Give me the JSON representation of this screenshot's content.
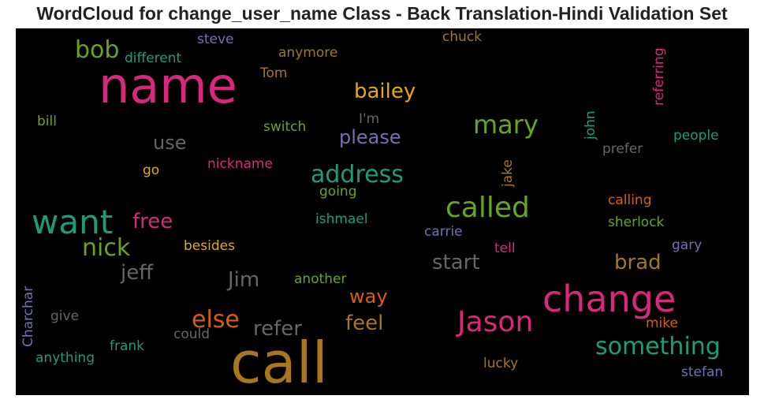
{
  "title": "WordCloud for change_user_name Class - Back Translation-Hindi Validation Set",
  "words": [
    {
      "text": "name",
      "color": "#d8287e"
    },
    {
      "text": "call",
      "color": "#a8761d"
    },
    {
      "text": "change",
      "color": "#d8287e"
    },
    {
      "text": "want",
      "color": "#1b9e77"
    },
    {
      "text": "called",
      "color": "#66a61e"
    },
    {
      "text": "Jason",
      "color": "#d8287e"
    },
    {
      "text": "something",
      "color": "#1b9e77"
    },
    {
      "text": "mary",
      "color": "#66a61e"
    },
    {
      "text": "address",
      "color": "#1b9e77"
    },
    {
      "text": "nick",
      "color": "#66a61e"
    },
    {
      "text": "bob",
      "color": "#66a61e"
    },
    {
      "text": "else",
      "color": "#d95f02"
    },
    {
      "text": "refer",
      "color": "#666666"
    },
    {
      "text": "bailey",
      "color": "#e6ab02"
    },
    {
      "text": "free",
      "color": "#d8287e"
    },
    {
      "text": "jeff",
      "color": "#666666"
    },
    {
      "text": "Jim",
      "color": "#666666"
    },
    {
      "text": "start",
      "color": "#666666"
    },
    {
      "text": "brad",
      "color": "#a8761d"
    },
    {
      "text": "feel",
      "color": "#a8761d"
    },
    {
      "text": "way",
      "color": "#d95f02"
    },
    {
      "text": "please",
      "color": "#7570b3"
    },
    {
      "text": "use",
      "color": "#666666"
    },
    {
      "text": "steve",
      "color": "#7570b3"
    },
    {
      "text": "different",
      "color": "#1b9e77"
    },
    {
      "text": "anymore",
      "color": "#a8761d"
    },
    {
      "text": "Tom",
      "color": "#a8761d"
    },
    {
      "text": "chuck",
      "color": "#a8761d"
    },
    {
      "text": "bill",
      "color": "#66a61e"
    },
    {
      "text": "switch",
      "color": "#66a61e"
    },
    {
      "text": "I'm",
      "color": "#666666"
    },
    {
      "text": "john",
      "color": "#1b9e77"
    },
    {
      "text": "people",
      "color": "#1b9e77"
    },
    {
      "text": "prefer",
      "color": "#666666"
    },
    {
      "text": "referring",
      "color": "#d8287e"
    },
    {
      "text": "go",
      "color": "#e6ab02"
    },
    {
      "text": "nickname",
      "color": "#d8287e"
    },
    {
      "text": "jake",
      "color": "#a8761d"
    },
    {
      "text": "going",
      "color": "#66a61e"
    },
    {
      "text": "ishmael",
      "color": "#1b9e77"
    },
    {
      "text": "calling",
      "color": "#d95f02"
    },
    {
      "text": "sherlock",
      "color": "#66a61e"
    },
    {
      "text": "carrie",
      "color": "#7570b3"
    },
    {
      "text": "besides",
      "color": "#e6ab02"
    },
    {
      "text": "tell",
      "color": "#d8287e"
    },
    {
      "text": "gary",
      "color": "#7570b3"
    },
    {
      "text": "another",
      "color": "#66a61e"
    },
    {
      "text": "Charchar",
      "color": "#7570b3"
    },
    {
      "text": "give",
      "color": "#666666"
    },
    {
      "text": "could",
      "color": "#666666"
    },
    {
      "text": "frank",
      "color": "#1b9e77"
    },
    {
      "text": "anything",
      "color": "#1b9e77"
    },
    {
      "text": "mike",
      "color": "#d95f02"
    },
    {
      "text": "lucky",
      "color": "#a8761d"
    },
    {
      "text": "stefan",
      "color": "#7570b3"
    }
  ]
}
